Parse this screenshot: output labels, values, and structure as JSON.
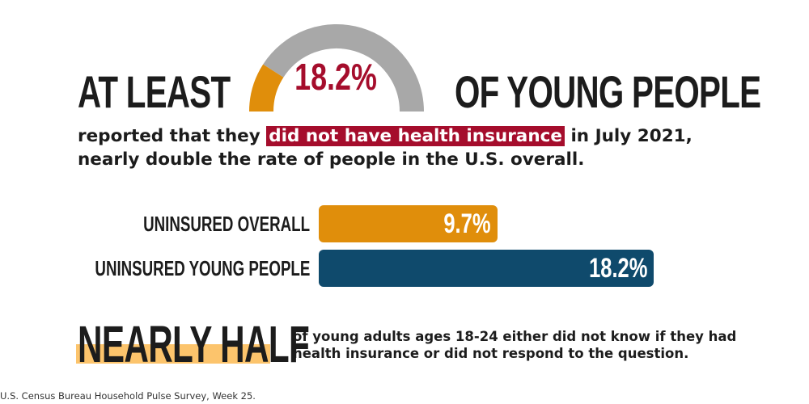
{
  "headline": {
    "left_text": "AT LEAST",
    "right_text": "OF YOUNG PEOPLE",
    "gauge_value": "18.2%"
  },
  "gauge": {
    "value_percent": 18.2,
    "fill_color": "#e08e0b",
    "track_color": "#a8a8a8"
  },
  "subline": {
    "before": "reported that they ",
    "highlight": "did not have health insurance",
    "after": " in July 2021,",
    "line2": "nearly double the rate of people in the U.S. overall.",
    "highlight_color": "#a50d2c"
  },
  "chart_data": {
    "type": "bar",
    "orientation": "horizontal",
    "categories": [
      "UNINSURED OVERALL",
      "UNINSURED YOUNG PEOPLE"
    ],
    "values": [
      9.7,
      18.2
    ],
    "value_labels": [
      "9.7%",
      "18.2%"
    ],
    "colors": [
      "#e08e0b",
      "#0f4a6c"
    ],
    "xlim": [
      0,
      18.2
    ],
    "grid": false
  },
  "nearly_half": {
    "title": "NEARLY HALF",
    "text": "of young adults ages 18-24 either did not know if they had health insurance or did not respond to the question.",
    "underline_color": "#fcc46c"
  },
  "source": "U.S. Census Bureau Household Pulse Survey, Week 25."
}
